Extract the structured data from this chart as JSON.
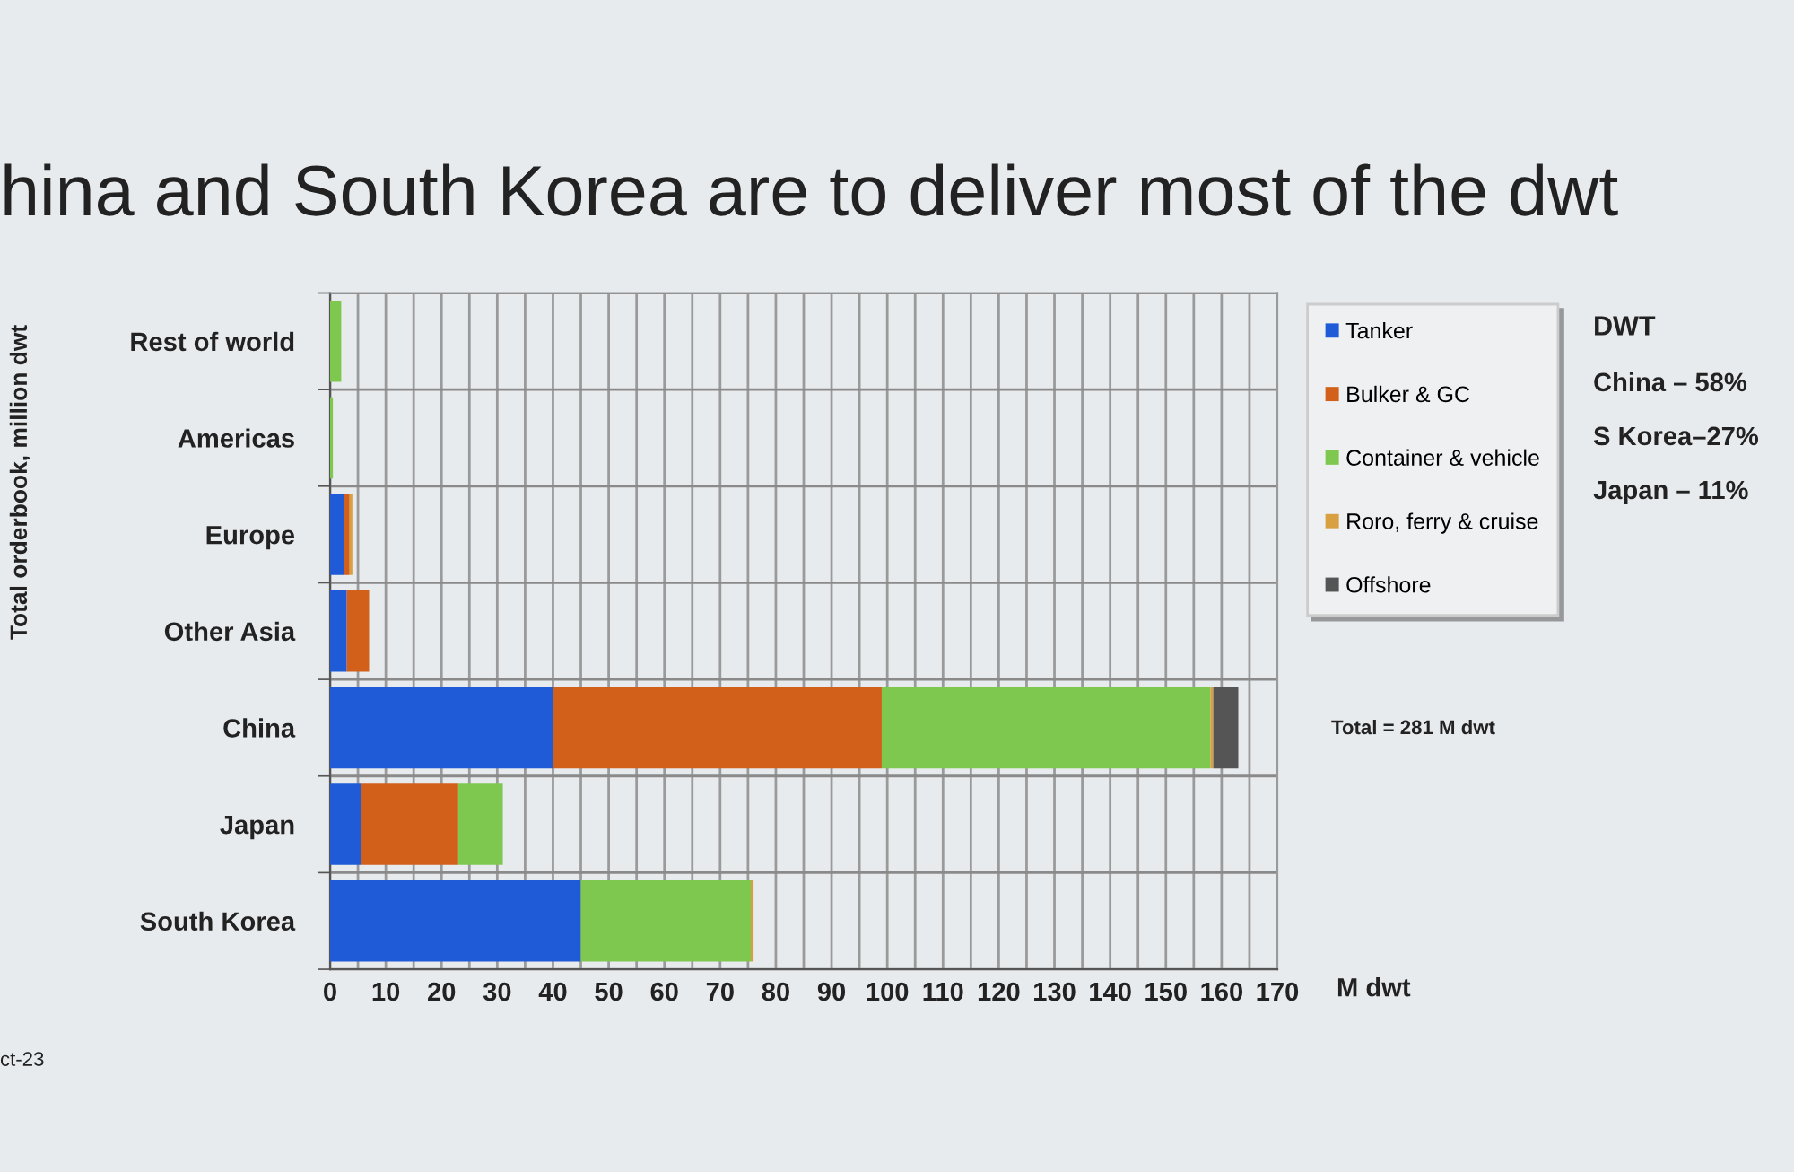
{
  "chart_data": {
    "type": "bar",
    "orientation": "horizontal",
    "stacked": true,
    "title": "hina and South Korea are to deliver most of the dwt",
    "ylabel": "Total orderbook, million dwt",
    "xlabel": "M dwt",
    "categories": [
      "Rest of world",
      "Americas",
      "Europe",
      "Other Asia",
      "China",
      "Japan",
      "South Korea"
    ],
    "series": [
      {
        "name": "Tanker",
        "color": "#1f5bd6",
        "values": [
          0,
          0,
          2.5,
          3,
          40,
          5.5,
          45
        ]
      },
      {
        "name": "Bulker & GC",
        "color": "#d2601a",
        "values": [
          0,
          0,
          1,
          4,
          59,
          17.5,
          0
        ]
      },
      {
        "name": "Container & vehicle",
        "color": "#7ec850",
        "values": [
          2,
          0.5,
          0,
          0,
          59,
          8,
          30.5
        ]
      },
      {
        "name": "Roro, ferry & cruise",
        "color": "#d8a040",
        "values": [
          0,
          0,
          0.5,
          0,
          0.5,
          0,
          0.5
        ]
      },
      {
        "name": "Offshore",
        "color": "#555555",
        "values": [
          0,
          0,
          0,
          0,
          4.5,
          0,
          0
        ]
      }
    ],
    "xlim": [
      0,
      170
    ],
    "xticks": [
      0,
      {
        "value": 5,
        "label": null
      },
      10,
      {
        "value": 15,
        "label": null
      },
      20,
      {
        "value": 25,
        "label": null
      },
      30,
      {
        "value": 35,
        "label": null
      },
      40,
      {
        "value": 45,
        "label": null
      },
      50,
      {
        "value": 55,
        "label": null
      },
      60,
      {
        "value": 65,
        "label": null
      },
      70,
      {
        "value": 75,
        "label": null
      },
      80,
      {
        "value": 85,
        "label": null
      },
      90,
      {
        "value": 95,
        "label": null
      },
      100,
      {
        "value": 105,
        "label": null
      },
      110,
      {
        "value": 115,
        "label": null
      },
      120,
      {
        "value": 125,
        "label": null
      },
      130,
      {
        "value": 135,
        "label": null
      },
      140,
      {
        "value": 145,
        "label": null
      },
      150,
      {
        "value": 155,
        "label": null
      },
      160,
      {
        "value": 165,
        "label": null
      },
      170
    ],
    "grid": true,
    "legend": "right",
    "annotations": [
      "Total = 281 M dwt",
      "DWT",
      "China – 58%",
      "S Korea–27%",
      "Japan – 11%",
      "ct-23"
    ]
  }
}
